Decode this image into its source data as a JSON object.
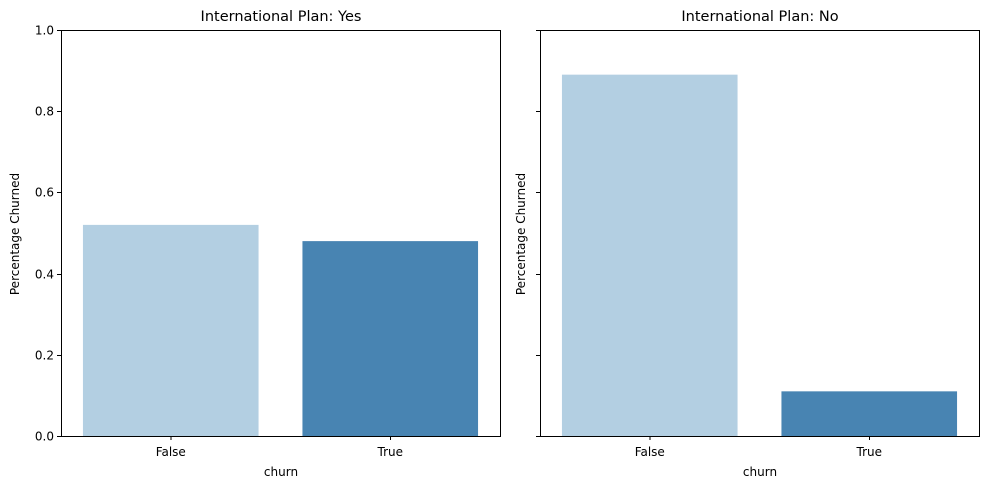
{
  "chart_data": [
    {
      "type": "bar",
      "title": "International Plan: Yes",
      "xlabel": "churn",
      "ylabel": "Percentage Churned",
      "categories": [
        "False",
        "True"
      ],
      "values": [
        0.52,
        0.48
      ],
      "ylim": [
        0,
        1.0
      ],
      "yticks": [
        "0.0",
        "0.2",
        "0.4",
        "0.6",
        "0.8",
        "1.0"
      ],
      "show_ytick_labels": true,
      "colors": [
        "#b3cfe2",
        "#4884b2"
      ],
      "grid": false,
      "legend": "none"
    },
    {
      "type": "bar",
      "title": "International Plan: No",
      "xlabel": "churn",
      "ylabel": "Percentage Churned",
      "categories": [
        "False",
        "True"
      ],
      "values": [
        0.89,
        0.11
      ],
      "ylim": [
        0,
        1.0
      ],
      "yticks": [
        "0.0",
        "0.2",
        "0.4",
        "0.6",
        "0.8",
        "1.0"
      ],
      "show_ytick_labels": false,
      "colors": [
        "#b3cfe2",
        "#4884b2"
      ],
      "grid": false,
      "legend": "none"
    }
  ]
}
